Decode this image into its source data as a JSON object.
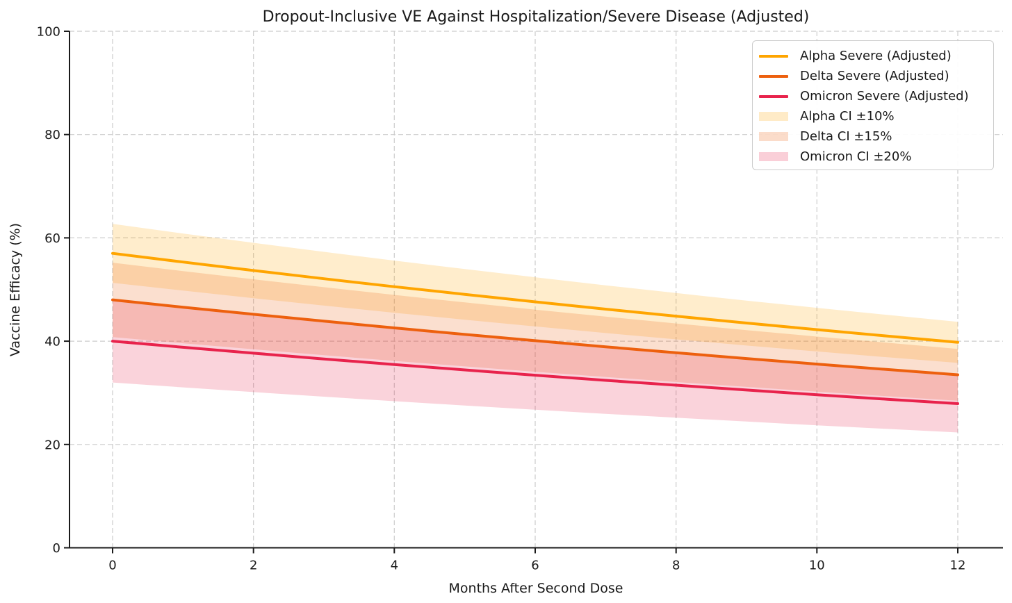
{
  "chart_data": {
    "type": "line",
    "title": "Dropout-Inclusive VE Against Hospitalization/Severe Disease (Adjusted)",
    "xlabel": "Months After Second Dose",
    "ylabel": "Vaccine Efficacy (%)",
    "x": [
      0,
      1,
      2,
      3,
      4,
      5,
      6,
      7,
      8,
      9,
      10,
      11,
      12
    ],
    "xticks": [
      0,
      2,
      4,
      6,
      8,
      10,
      12
    ],
    "yticks": [
      0,
      20,
      40,
      60,
      80,
      100
    ],
    "xlim": [
      -0.6,
      12.6
    ],
    "ylim": [
      0,
      100
    ],
    "grid": true,
    "grid_style": "dashed",
    "grid_color": "#cccccc",
    "background": "#ffffff",
    "text_color": "#1a1a1a",
    "legend_position": "upper right",
    "band_opacity": 0.2,
    "series": [
      {
        "name": "Alpha Severe (Adjusted)",
        "color": "#FFA500",
        "ci_label": "Alpha CI ±10%",
        "ci_fraction": 0.1,
        "values": [
          57.0,
          55.32,
          53.68,
          52.09,
          50.55,
          49.06,
          47.61,
          46.2,
          44.84,
          43.51,
          42.23,
          40.98,
          39.77
        ]
      },
      {
        "name": "Delta Severe (Adjusted)",
        "color": "#ED600E",
        "ci_label": "Delta CI ±15%",
        "ci_fraction": 0.15,
        "values": [
          48.0,
          46.58,
          45.2,
          43.87,
          42.57,
          41.31,
          40.09,
          38.91,
          37.76,
          36.64,
          35.56,
          34.51,
          33.49
        ]
      },
      {
        "name": "Omicron Severe (Adjusted)",
        "color": "#E8234C",
        "ci_label": "Omicron CI ±20%",
        "ci_fraction": 0.2,
        "values": [
          40.0,
          38.82,
          37.67,
          36.56,
          35.48,
          34.43,
          33.41,
          32.42,
          31.47,
          30.54,
          29.63,
          28.76,
          27.91
        ]
      }
    ]
  }
}
